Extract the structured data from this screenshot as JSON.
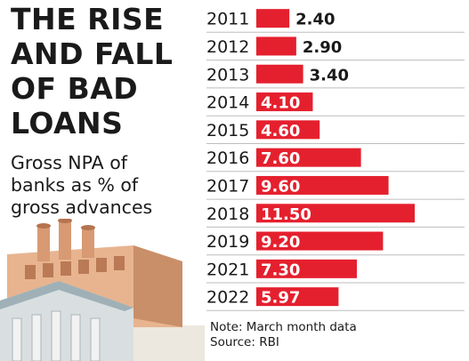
{
  "title_lines": [
    "THE RISE",
    "AND FALL",
    "OF BAD",
    "LOANS"
  ],
  "subtitle_lines": [
    "Gross NPA of",
    "banks as % of",
    "gross advances"
  ],
  "notes": {
    "note": "Note: March month data",
    "source": "Source: RBI"
  },
  "colors": {
    "bar": "#e5202e",
    "label_inside": "#ffffff",
    "label_outside": "#1a1a1a",
    "grid": "#bdbdbd"
  },
  "illustration": {
    "icon": "factory-bank-illustration"
  },
  "chart_data": {
    "type": "bar",
    "orientation": "horizontal",
    "title": "THE RISE AND FALL OF BAD LOANS",
    "subtitle": "Gross NPA of banks as % of gross advances",
    "categories": [
      "2011",
      "2012",
      "2013",
      "2014",
      "2015",
      "2016",
      "2017",
      "2018",
      "2019",
      "2021",
      "2022"
    ],
    "values": [
      2.4,
      2.9,
      3.4,
      4.1,
      4.6,
      7.6,
      9.6,
      11.5,
      9.2,
      7.3,
      5.97
    ],
    "value_labels": [
      "2.40",
      "2.90",
      "3.40",
      "4.10",
      "4.60",
      "7.60",
      "9.60",
      "11.50",
      "9.20",
      "7.30",
      "5.97"
    ],
    "xlim": [
      0,
      11.5
    ],
    "grid": true,
    "legend": "none"
  }
}
